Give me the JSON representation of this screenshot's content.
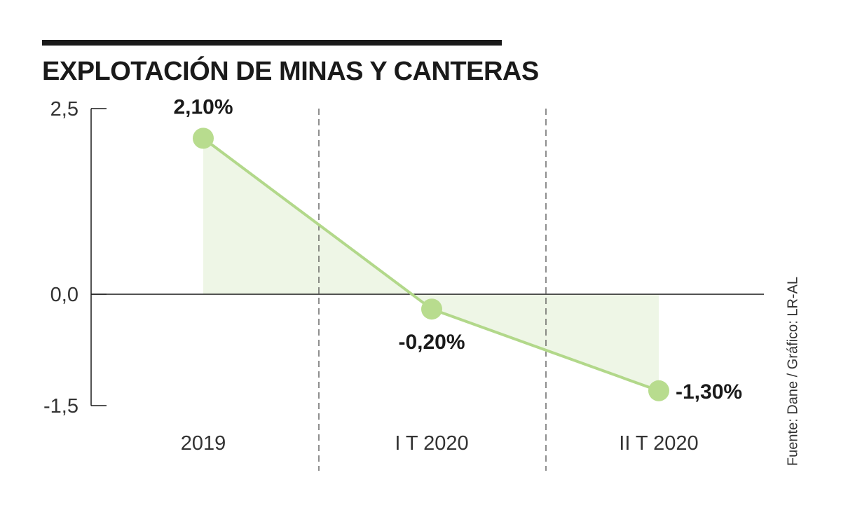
{
  "title": "EXPLOTACIÓN DE MINAS Y CANTERAS",
  "source": "Fuente: Dane / Gráfico: LR-AL",
  "colors": {
    "line": "#b2d88a",
    "point": "#b8dc8e",
    "fill": "#eef6e6",
    "text": "#1a1a1a"
  },
  "chart_data": {
    "type": "line",
    "title": "EXPLOTACIÓN DE MINAS Y CANTERAS",
    "categories": [
      "2019",
      "I T 2020",
      "II T 2020"
    ],
    "values": [
      2.1,
      -0.2,
      -1.3
    ],
    "data_labels": [
      "2,10%",
      "-0,20%",
      "-1,30%"
    ],
    "y_ticks": [
      "2,5",
      "0,0",
      "-1,5"
    ],
    "y_tick_values": [
      2.5,
      0.0,
      -1.5
    ],
    "ylim": [
      -1.5,
      2.5
    ],
    "xlabel": "",
    "ylabel": "",
    "grid": false,
    "legend": "none"
  }
}
